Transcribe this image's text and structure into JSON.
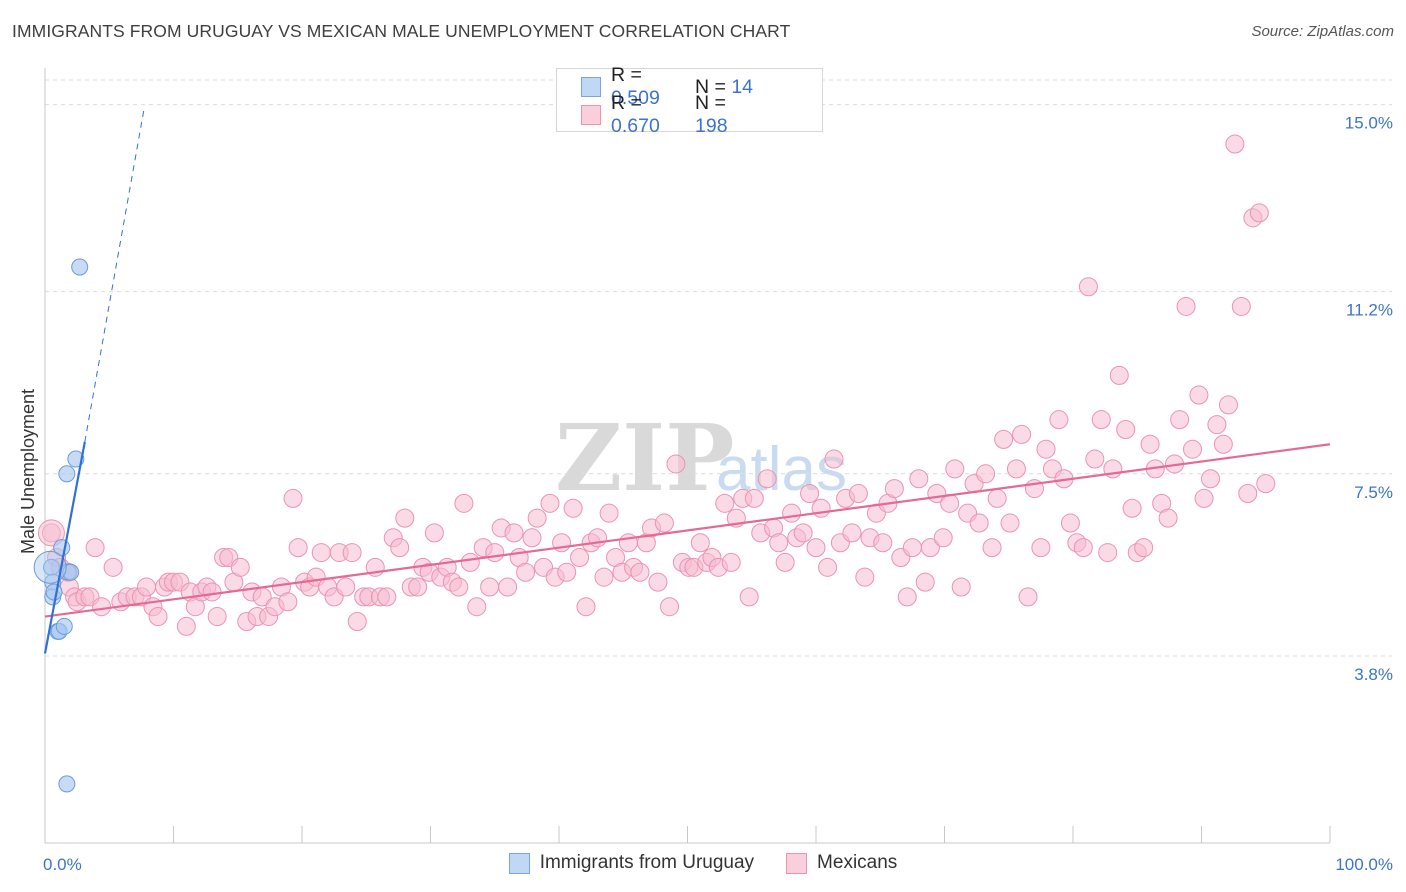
{
  "header": {
    "title": "IMMIGRANTS FROM URUGUAY VS MEXICAN MALE UNEMPLOYMENT CORRELATION CHART",
    "source": "Source: ZipAtlas.com"
  },
  "legend": {
    "rows": [
      {
        "r_label": "R = ",
        "r_value": "0.509",
        "n_label": "N = ",
        "n_value": "14",
        "color": "#a9c8f0",
        "stroke": "#7ba3dd"
      },
      {
        "r_label": "R = ",
        "r_value": "0.670",
        "n_label": "N = ",
        "n_value": "198",
        "color": "#f6bcd0",
        "stroke": "#ec93b1"
      }
    ]
  },
  "bottom_legend": [
    {
      "label": "Immigrants from Uruguay",
      "color": "#c0d8f4",
      "stroke": "#7ba3dd"
    },
    {
      "label": "Mexicans",
      "color": "#f9cfdc",
      "stroke": "#ec93b1"
    }
  ],
  "colors": {
    "blue_point": "#a9c8f0",
    "blue_stroke": "#6c9bdc",
    "blue_line": "#2f72d6",
    "pink_point": "#f6bcd0",
    "pink_stroke": "#ec93b1",
    "pink_line": "#e46a95",
    "tick_label": "#3d74c9",
    "grid": "#dcdcdc"
  },
  "chart_data": {
    "type": "scatter",
    "title": "IMMIGRANTS FROM URUGUAY VS MEXICAN MALE UNEMPLOYMENT CORRELATION CHART",
    "xlabel": "",
    "ylabel": "Male Unemployment",
    "xlim": [
      0,
      100
    ],
    "ylim": [
      0,
      15.5
    ],
    "x_tick_labels": [
      "0.0%",
      "100.0%"
    ],
    "y_ticks": [
      3.8,
      7.5,
      11.2,
      15.0
    ],
    "y_tick_labels": [
      "3.8%",
      "7.5%",
      "11.2%",
      "15.0%"
    ],
    "grid": true,
    "watermark": {
      "part1": "ZIP",
      "part2": "atlas"
    },
    "series": [
      {
        "name": "Immigrants from Uruguay",
        "points": [
          [
            0.5,
            5.6
          ],
          [
            0.6,
            5.3
          ],
          [
            0.6,
            5.0
          ],
          [
            0.7,
            5.1
          ],
          [
            1.0,
            4.3
          ],
          [
            1.1,
            4.3
          ],
          [
            1.3,
            6.0
          ],
          [
            1.5,
            4.4
          ],
          [
            1.7,
            7.5
          ],
          [
            1.8,
            5.5
          ],
          [
            2.0,
            5.5
          ],
          [
            2.4,
            7.8
          ],
          [
            2.7,
            11.7
          ],
          [
            1.7,
            1.2
          ]
        ],
        "trend": {
          "x": [
            0.0,
            3.1
          ],
          "y": [
            3.85,
            8.15
          ]
        },
        "trend_ext": {
          "x": [
            3.1,
            7.7
          ],
          "y": [
            8.15,
            14.9
          ]
        }
      },
      {
        "name": "Mexicans",
        "points": [
          [
            0.5,
            6.3
          ],
          [
            0.9,
            5.8
          ],
          [
            1.2,
            5.6
          ],
          [
            1.8,
            5.5
          ],
          [
            1.9,
            5.2
          ],
          [
            2.3,
            5.0
          ],
          [
            2.5,
            4.9
          ],
          [
            3.1,
            5.0
          ],
          [
            3.5,
            5.0
          ],
          [
            3.9,
            6.0
          ],
          [
            4.4,
            4.8
          ],
          [
            5.3,
            5.6
          ],
          [
            5.9,
            4.9
          ],
          [
            6.4,
            5.0
          ],
          [
            7.0,
            5.0
          ],
          [
            7.5,
            5.0
          ],
          [
            7.9,
            5.2
          ],
          [
            8.4,
            4.8
          ],
          [
            8.8,
            4.6
          ],
          [
            9.3,
            5.2
          ],
          [
            9.6,
            5.3
          ],
          [
            10.0,
            5.3
          ],
          [
            10.5,
            5.3
          ],
          [
            11.0,
            4.4
          ],
          [
            11.3,
            5.1
          ],
          [
            11.7,
            4.8
          ],
          [
            12.2,
            5.1
          ],
          [
            12.6,
            5.2
          ],
          [
            13.0,
            5.1
          ],
          [
            13.4,
            4.6
          ],
          [
            13.9,
            5.8
          ],
          [
            14.3,
            5.8
          ],
          [
            14.7,
            5.3
          ],
          [
            15.2,
            5.6
          ],
          [
            15.7,
            4.5
          ],
          [
            16.1,
            5.1
          ],
          [
            16.5,
            4.6
          ],
          [
            16.9,
            5.0
          ],
          [
            17.4,
            4.6
          ],
          [
            17.9,
            4.8
          ],
          [
            18.4,
            5.2
          ],
          [
            18.9,
            4.9
          ],
          [
            19.3,
            7.0
          ],
          [
            19.7,
            6.0
          ],
          [
            20.2,
            5.3
          ],
          [
            20.6,
            5.2
          ],
          [
            21.1,
            5.4
          ],
          [
            21.5,
            5.9
          ],
          [
            22.0,
            5.2
          ],
          [
            22.5,
            5.0
          ],
          [
            22.9,
            5.9
          ],
          [
            23.4,
            5.2
          ],
          [
            23.9,
            5.9
          ],
          [
            24.3,
            4.5
          ],
          [
            24.8,
            5.0
          ],
          [
            25.2,
            5.0
          ],
          [
            25.7,
            5.6
          ],
          [
            26.1,
            5.0
          ],
          [
            26.6,
            5.0
          ],
          [
            27.1,
            6.2
          ],
          [
            27.6,
            6.0
          ],
          [
            28.0,
            6.6
          ],
          [
            28.5,
            5.2
          ],
          [
            29.0,
            5.2
          ],
          [
            29.4,
            5.6
          ],
          [
            29.9,
            5.5
          ],
          [
            30.3,
            6.3
          ],
          [
            30.8,
            5.4
          ],
          [
            31.3,
            5.6
          ],
          [
            31.7,
            5.3
          ],
          [
            32.2,
            5.2
          ],
          [
            32.6,
            6.9
          ],
          [
            33.1,
            5.7
          ],
          [
            33.6,
            4.8
          ],
          [
            34.1,
            6.0
          ],
          [
            34.6,
            5.2
          ],
          [
            35.0,
            5.9
          ],
          [
            35.5,
            6.4
          ],
          [
            36.0,
            5.2
          ],
          [
            36.5,
            6.3
          ],
          [
            36.9,
            5.8
          ],
          [
            37.4,
            5.5
          ],
          [
            37.9,
            6.2
          ],
          [
            38.3,
            6.6
          ],
          [
            38.8,
            5.6
          ],
          [
            39.3,
            6.9
          ],
          [
            39.7,
            5.4
          ],
          [
            40.2,
            6.1
          ],
          [
            40.6,
            5.5
          ],
          [
            41.1,
            6.8
          ],
          [
            41.6,
            5.8
          ],
          [
            42.1,
            4.8
          ],
          [
            42.5,
            6.1
          ],
          [
            43.0,
            6.2
          ],
          [
            43.5,
            5.4
          ],
          [
            43.9,
            6.7
          ],
          [
            44.4,
            5.8
          ],
          [
            44.9,
            5.5
          ],
          [
            45.4,
            6.1
          ],
          [
            45.8,
            5.6
          ],
          [
            46.3,
            5.5
          ],
          [
            46.8,
            6.1
          ],
          [
            47.2,
            6.4
          ],
          [
            47.7,
            5.3
          ],
          [
            48.2,
            6.5
          ],
          [
            48.6,
            4.8
          ],
          [
            49.1,
            7.7
          ],
          [
            49.6,
            5.7
          ],
          [
            50.1,
            5.6
          ],
          [
            50.5,
            5.6
          ],
          [
            51.0,
            6.1
          ],
          [
            51.5,
            5.7
          ],
          [
            51.9,
            5.8
          ],
          [
            52.4,
            5.6
          ],
          [
            52.9,
            6.9
          ],
          [
            53.4,
            5.7
          ],
          [
            53.8,
            6.6
          ],
          [
            54.3,
            7.0
          ],
          [
            54.8,
            5.0
          ],
          [
            55.2,
            7.0
          ],
          [
            55.7,
            6.3
          ],
          [
            56.2,
            7.4
          ],
          [
            56.7,
            6.4
          ],
          [
            57.1,
            6.1
          ],
          [
            57.6,
            5.7
          ],
          [
            58.1,
            6.7
          ],
          [
            58.5,
            6.2
          ],
          [
            59.0,
            6.3
          ],
          [
            59.5,
            7.1
          ],
          [
            60.0,
            6.0
          ],
          [
            60.4,
            6.8
          ],
          [
            60.9,
            5.6
          ],
          [
            61.4,
            7.8
          ],
          [
            61.9,
            6.1
          ],
          [
            62.3,
            7.0
          ],
          [
            62.8,
            6.3
          ],
          [
            63.3,
            7.1
          ],
          [
            63.8,
            5.4
          ],
          [
            64.2,
            6.2
          ],
          [
            64.7,
            6.7
          ],
          [
            65.2,
            6.1
          ],
          [
            65.6,
            6.9
          ],
          [
            66.1,
            7.2
          ],
          [
            66.6,
            5.8
          ],
          [
            67.1,
            5.0
          ],
          [
            67.5,
            6.0
          ],
          [
            68.0,
            7.4
          ],
          [
            68.5,
            5.3
          ],
          [
            68.9,
            6.0
          ],
          [
            69.4,
            7.1
          ],
          [
            69.9,
            6.2
          ],
          [
            70.4,
            6.9
          ],
          [
            70.8,
            7.6
          ],
          [
            71.3,
            5.2
          ],
          [
            71.8,
            6.7
          ],
          [
            72.3,
            7.3
          ],
          [
            72.7,
            6.5
          ],
          [
            73.2,
            7.5
          ],
          [
            73.7,
            6.0
          ],
          [
            74.1,
            7.0
          ],
          [
            74.6,
            8.2
          ],
          [
            75.1,
            6.5
          ],
          [
            75.6,
            7.6
          ],
          [
            76.0,
            8.3
          ],
          [
            76.5,
            5.0
          ],
          [
            77.0,
            7.2
          ],
          [
            77.5,
            6.0
          ],
          [
            77.9,
            8.0
          ],
          [
            78.4,
            7.6
          ],
          [
            78.9,
            8.6
          ],
          [
            79.3,
            7.4
          ],
          [
            79.8,
            6.5
          ],
          [
            80.3,
            6.1
          ],
          [
            80.8,
            6.0
          ],
          [
            81.2,
            11.3
          ],
          [
            81.7,
            7.8
          ],
          [
            82.2,
            8.6
          ],
          [
            82.7,
            5.9
          ],
          [
            83.1,
            7.6
          ],
          [
            83.6,
            9.5
          ],
          [
            84.1,
            8.4
          ],
          [
            84.6,
            6.8
          ],
          [
            85.0,
            5.9
          ],
          [
            85.5,
            6.0
          ],
          [
            86.0,
            8.1
          ],
          [
            86.4,
            7.6
          ],
          [
            86.9,
            6.9
          ],
          [
            87.4,
            6.6
          ],
          [
            87.9,
            7.7
          ],
          [
            88.3,
            8.6
          ],
          [
            88.8,
            10.9
          ],
          [
            89.3,
            8.0
          ],
          [
            89.8,
            9.1
          ],
          [
            90.2,
            7.0
          ],
          [
            90.7,
            7.4
          ],
          [
            91.2,
            8.5
          ],
          [
            91.7,
            8.1
          ],
          [
            92.1,
            8.9
          ],
          [
            92.6,
            14.2
          ],
          [
            93.1,
            10.9
          ],
          [
            93.6,
            7.1
          ],
          [
            94.0,
            12.7
          ],
          [
            94.5,
            12.8
          ],
          [
            95.0,
            7.3
          ]
        ],
        "trend": {
          "x": [
            0.0,
            100.0
          ],
          "y": [
            4.6,
            8.1
          ]
        }
      }
    ]
  }
}
